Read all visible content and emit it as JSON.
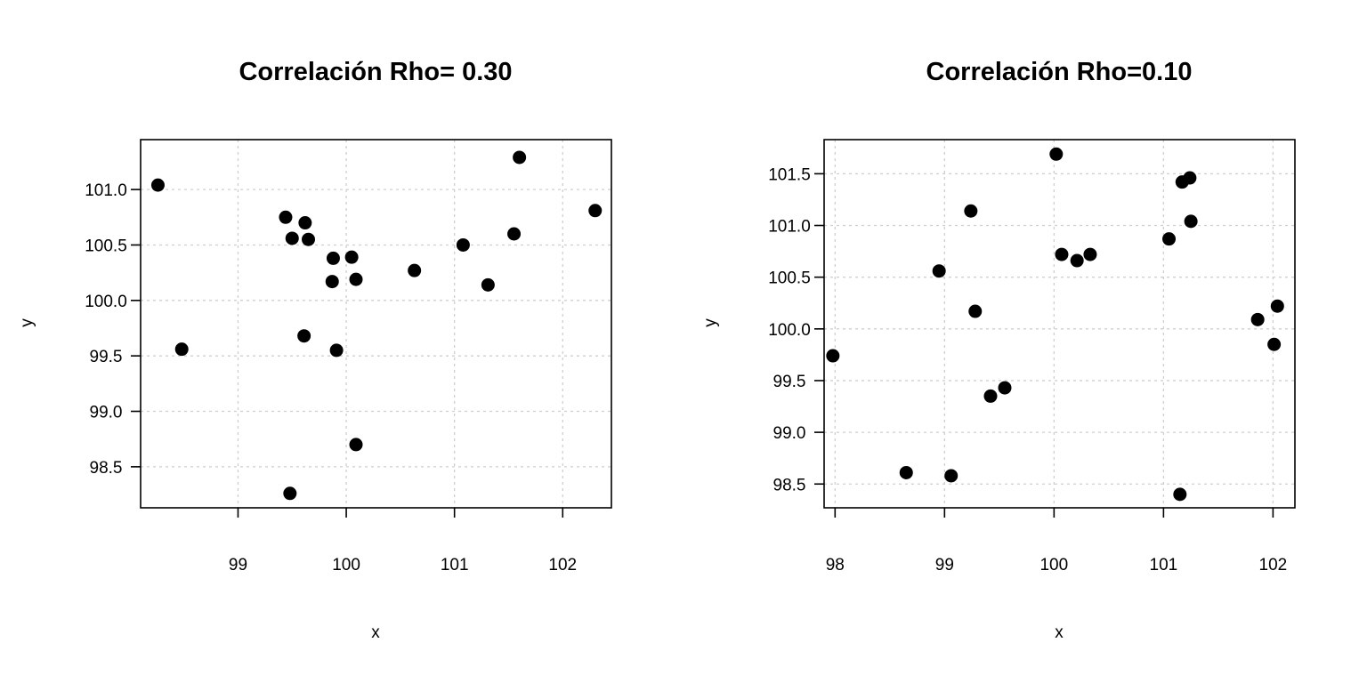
{
  "chart_data": [
    {
      "type": "scatter",
      "title": "Correlación Rho= 0.30",
      "xlabel": "x",
      "ylabel": "y",
      "xlim": [
        98.1,
        102.45
      ],
      "ylim": [
        98.13,
        101.45
      ],
      "xticks": [
        99,
        100,
        101,
        102
      ],
      "xtick_labels": [
        "99",
        "100",
        "101",
        "102"
      ],
      "yticks": [
        98.5,
        99.0,
        99.5,
        100.0,
        100.5,
        101.0
      ],
      "ytick_labels": [
        "98.5",
        "99.0",
        "99.5",
        "100.0",
        "100.5",
        "101.0"
      ],
      "grid": true,
      "points": [
        {
          "x": 98.26,
          "y": 101.04
        },
        {
          "x": 98.48,
          "y": 99.56
        },
        {
          "x": 99.44,
          "y": 100.75
        },
        {
          "x": 99.62,
          "y": 100.7
        },
        {
          "x": 99.5,
          "y": 100.56
        },
        {
          "x": 99.65,
          "y": 100.55
        },
        {
          "x": 99.88,
          "y": 100.38
        },
        {
          "x": 100.05,
          "y": 100.39
        },
        {
          "x": 99.87,
          "y": 100.17
        },
        {
          "x": 100.09,
          "y": 100.19
        },
        {
          "x": 100.63,
          "y": 100.27
        },
        {
          "x": 101.08,
          "y": 100.5
        },
        {
          "x": 101.55,
          "y": 100.6
        },
        {
          "x": 101.31,
          "y": 100.14
        },
        {
          "x": 101.6,
          "y": 101.29
        },
        {
          "x": 102.3,
          "y": 100.81
        },
        {
          "x": 99.61,
          "y": 99.68
        },
        {
          "x": 99.91,
          "y": 99.55
        },
        {
          "x": 100.09,
          "y": 98.7
        },
        {
          "x": 99.48,
          "y": 98.26
        }
      ]
    },
    {
      "type": "scatter",
      "title": "Correlación Rho=0.10",
      "xlabel": "x",
      "ylabel": "y",
      "xlim": [
        97.9,
        102.2
      ],
      "ylim": [
        98.27,
        101.83
      ],
      "xticks": [
        98,
        99,
        100,
        101,
        102
      ],
      "xtick_labels": [
        "98",
        "99",
        "100",
        "101",
        "102"
      ],
      "yticks": [
        98.5,
        99.0,
        99.5,
        100.0,
        100.5,
        101.0,
        101.5
      ],
      "ytick_labels": [
        "98.5",
        "99.0",
        "99.5",
        "100.0",
        "100.5",
        "101.0",
        "101.5"
      ],
      "grid": true,
      "points": [
        {
          "x": 97.98,
          "y": 99.74
        },
        {
          "x": 98.65,
          "y": 98.61
        },
        {
          "x": 99.06,
          "y": 98.58
        },
        {
          "x": 98.95,
          "y": 100.56
        },
        {
          "x": 99.24,
          "y": 101.14
        },
        {
          "x": 99.28,
          "y": 100.17
        },
        {
          "x": 99.42,
          "y": 99.35
        },
        {
          "x": 99.55,
          "y": 99.43
        },
        {
          "x": 100.02,
          "y": 101.69
        },
        {
          "x": 100.07,
          "y": 100.72
        },
        {
          "x": 100.21,
          "y": 100.66
        },
        {
          "x": 100.33,
          "y": 100.72
        },
        {
          "x": 101.05,
          "y": 100.87
        },
        {
          "x": 101.17,
          "y": 101.42
        },
        {
          "x": 101.24,
          "y": 101.46
        },
        {
          "x": 101.25,
          "y": 101.04
        },
        {
          "x": 101.15,
          "y": 98.4
        },
        {
          "x": 101.86,
          "y": 100.09
        },
        {
          "x": 102.04,
          "y": 100.22
        },
        {
          "x": 102.01,
          "y": 99.85
        }
      ]
    }
  ]
}
